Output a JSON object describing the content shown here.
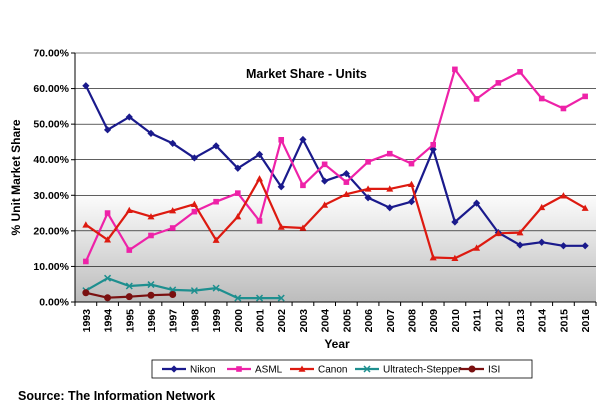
{
  "chart_data": {
    "type": "line",
    "title": "Market Share - Units",
    "xlabel": "Year",
    "ylabel": "% Unit Market Share",
    "ylim": [
      0,
      70
    ],
    "y_ticks": [
      "0.00%",
      "10.00%",
      "20.00%",
      "30.00%",
      "40.00%",
      "50.00%",
      "60.00%",
      "70.00%"
    ],
    "grid": "horizontal",
    "legend_position": "bottom",
    "categories": [
      "1993",
      "1994",
      "1995",
      "1996",
      "1997",
      "1998",
      "1999",
      "2000",
      "2001",
      "2002",
      "2003",
      "2004",
      "2005",
      "2006",
      "2007",
      "2008",
      "2009",
      "2010",
      "2011",
      "2012",
      "2013",
      "2014",
      "2015",
      "2016"
    ],
    "series": [
      {
        "name": "Nikon",
        "color": "#1a1a8c",
        "marker": "diamond",
        "values": [
          60.8,
          48.4,
          52.0,
          47.4,
          44.6,
          40.5,
          43.9,
          37.6,
          41.5,
          32.4,
          45.7,
          34.0,
          36.1,
          29.3,
          26.5,
          28.2,
          42.9,
          22.5,
          27.8,
          19.5,
          16.0,
          16.8,
          15.8,
          15.8
        ]
      },
      {
        "name": "ASML",
        "color": "#ee22a8",
        "marker": "square",
        "values": [
          11.4,
          25.0,
          14.6,
          18.7,
          20.8,
          25.4,
          28.2,
          30.6,
          22.8,
          45.6,
          32.8,
          38.7,
          33.7,
          39.4,
          41.7,
          38.9,
          44.2,
          65.4,
          57.1,
          61.6,
          64.7,
          57.2,
          54.4,
          57.8
        ]
      },
      {
        "name": "Canon",
        "color": "#dd1a10",
        "marker": "triangle",
        "values": [
          21.7,
          17.5,
          25.8,
          24.0,
          25.7,
          27.5,
          17.4,
          24.0,
          34.7,
          21.1,
          20.8,
          27.3,
          30.3,
          31.8,
          31.8,
          33.1,
          12.5,
          12.3,
          15.2,
          19.3,
          19.5,
          26.6,
          29.9,
          26.4
        ]
      },
      {
        "name": "Ultratech-Stepper",
        "color": "#1e8f8f",
        "marker": "x",
        "values": [
          3.2,
          6.7,
          4.5,
          4.9,
          3.4,
          3.2,
          3.9,
          1.1,
          1.1,
          1.1,
          null,
          null,
          null,
          null,
          null,
          null,
          null,
          null,
          null,
          null,
          null,
          null,
          null,
          null
        ]
      },
      {
        "name": "ISI",
        "color": "#7a1010",
        "marker": "circle",
        "values": [
          2.6,
          1.2,
          1.5,
          1.9,
          2.1,
          null,
          null,
          null,
          null,
          null,
          null,
          null,
          null,
          null,
          null,
          null,
          null,
          null,
          null,
          null,
          null,
          null,
          null,
          null
        ]
      }
    ]
  },
  "source": "Source: The Information Network"
}
